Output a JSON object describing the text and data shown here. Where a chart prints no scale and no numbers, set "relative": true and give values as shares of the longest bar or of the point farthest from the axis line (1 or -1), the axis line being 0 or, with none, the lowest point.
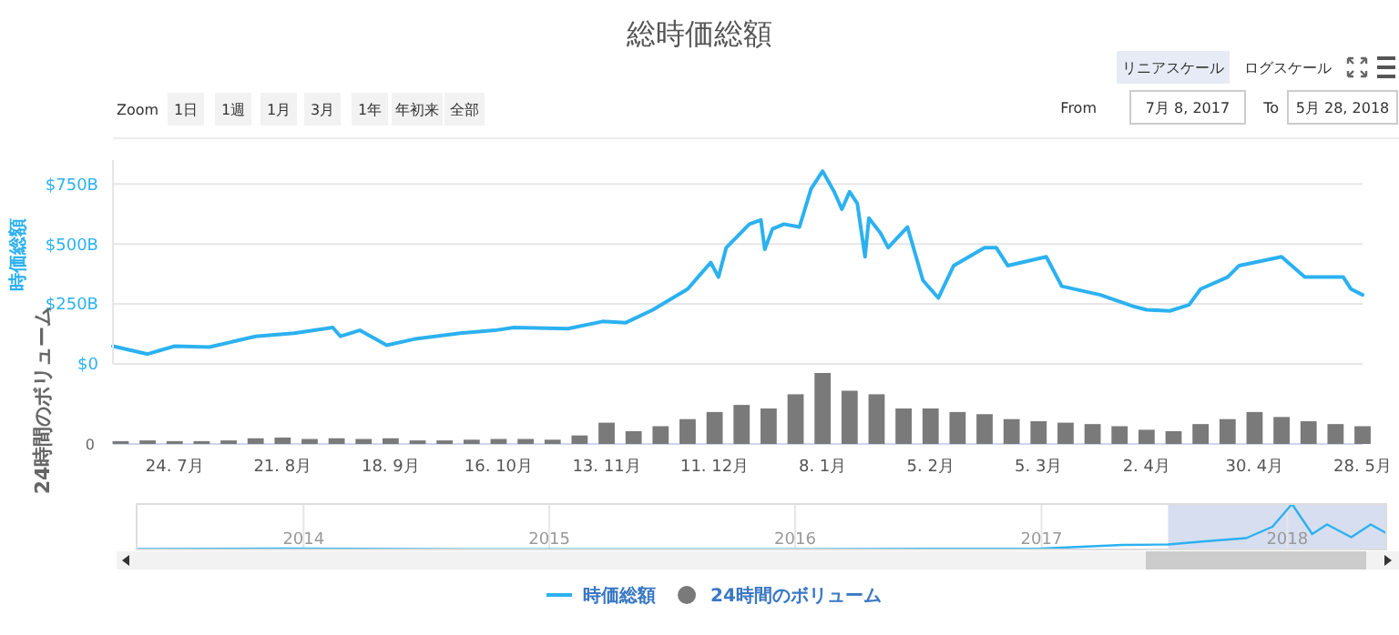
{
  "chart_data": [
    {
      "type": "line",
      "title": "総時価総額",
      "ylabel": "時価総額",
      "xlim": [
        "2017-07-08",
        "2018-05-28"
      ],
      "ylim": [
        0,
        850
      ],
      "yticks": [
        {
          "value": 0,
          "label": "$0"
        },
        {
          "value": 250,
          "label": "$250B"
        },
        {
          "value": 500,
          "label": "$500B"
        },
        {
          "value": 750,
          "label": "$750B"
        }
      ],
      "tick_labels": "y",
      "grid": "y",
      "legend": "bottom",
      "annotations": [
        "Zoom",
        "1日",
        "1週",
        "1月",
        "3月",
        "1年",
        "年初来",
        "全部",
        "From",
        "7月 8, 2017",
        "To",
        "5月 28, 2018",
        "リニアスケール",
        "ログスケール"
      ],
      "x": [
        "2017-07-08",
        "2017-07-17",
        "2017-07-24",
        "2017-08-02",
        "2017-08-14",
        "2017-08-24",
        "2017-09-03",
        "2017-09-05",
        "2017-09-10",
        "2017-09-17",
        "2017-09-24",
        "2017-10-06",
        "2017-10-15",
        "2017-10-20",
        "2017-11-03",
        "2017-11-12",
        "2017-11-18",
        "2017-11-25",
        "2017-12-04",
        "2017-12-10",
        "2017-12-12",
        "2017-12-14",
        "2017-12-20",
        "2017-12-23",
        "2017-12-24",
        "2017-12-26",
        "2017-12-29",
        "2018-01-02",
        "2018-01-05",
        "2018-01-08",
        "2018-01-11",
        "2018-01-13",
        "2018-01-15",
        "2018-01-17",
        "2018-01-19",
        "2018-01-20",
        "2018-01-23",
        "2018-01-25",
        "2018-01-30",
        "2018-02-03",
        "2018-02-07",
        "2018-02-11",
        "2018-02-19",
        "2018-02-22",
        "2018-02-25",
        "2018-03-07",
        "2018-03-11",
        "2018-03-21",
        "2018-03-30",
        "2018-04-02",
        "2018-04-08",
        "2018-04-13",
        "2018-04-16",
        "2018-04-23",
        "2018-04-26",
        "2018-05-07",
        "2018-05-13",
        "2018-05-23",
        "2018-05-25",
        "2018-05-28"
      ],
      "series": [
        {
          "name": "時価総額",
          "color": "#2cb1f0",
          "values": [
            74,
            41,
            74,
            70,
            115,
            128,
            152,
            115,
            140,
            78,
            103,
            128,
            140,
            152,
            147,
            177,
            172,
            226,
            312,
            423,
            362,
            484,
            583,
            600,
            478,
            563,
            583,
            571,
            730,
            804,
            718,
            645,
            718,
            669,
            447,
            608,
            546,
            485,
            571,
            349,
            275,
            410,
            485,
            485,
            410,
            447,
            324,
            288,
            238,
            226,
            221,
            246,
            312,
            362,
            410,
            447,
            362,
            362,
            312,
            288
          ]
        }
      ]
    },
    {
      "type": "bar",
      "relative": true,
      "ylabel": "24時間のボリューム",
      "annotations": [
        "0"
      ],
      "legend": "bottom",
      "xlim": [
        "2017-07-08",
        "2018-05-28"
      ],
      "xticks": [
        {
          "value": "2017-07-24",
          "label": "24. 7月"
        },
        {
          "value": "2017-08-21",
          "label": "21. 8月"
        },
        {
          "value": "2017-09-18",
          "label": "18. 9月"
        },
        {
          "value": "2017-10-16",
          "label": "16. 10月"
        },
        {
          "value": "2017-11-13",
          "label": "13. 11月"
        },
        {
          "value": "2017-12-11",
          "label": "11. 12月"
        },
        {
          "value": "2018-01-08",
          "label": "8. 1月"
        },
        {
          "value": "2018-02-05",
          "label": "5. 2月"
        },
        {
          "value": "2018-03-05",
          "label": "5. 3月"
        },
        {
          "value": "2018-04-02",
          "label": "2. 4月"
        },
        {
          "value": "2018-04-30",
          "label": "30. 4月"
        },
        {
          "value": "2018-05-28",
          "label": "28. 5月"
        }
      ],
      "tick_labels": "x",
      "x": [
        "2017-07-10",
        "2017-07-17",
        "2017-07-24",
        "2017-07-31",
        "2017-08-07",
        "2017-08-14",
        "2017-08-21",
        "2017-08-28",
        "2017-09-04",
        "2017-09-11",
        "2017-09-18",
        "2017-09-25",
        "2017-10-02",
        "2017-10-09",
        "2017-10-16",
        "2017-10-23",
        "2017-10-30",
        "2017-11-06",
        "2017-11-13",
        "2017-11-20",
        "2017-11-27",
        "2017-12-04",
        "2017-12-11",
        "2017-12-18",
        "2017-12-25",
        "2018-01-01",
        "2018-01-08",
        "2018-01-15",
        "2018-01-22",
        "2018-01-29",
        "2018-02-05",
        "2018-02-12",
        "2018-02-19",
        "2018-02-26",
        "2018-03-05",
        "2018-03-12",
        "2018-03-19",
        "2018-03-26",
        "2018-04-02",
        "2018-04-09",
        "2018-04-16",
        "2018-04-23",
        "2018-04-30",
        "2018-05-07",
        "2018-05-14",
        "2018-05-21",
        "2018-05-28"
      ],
      "series": [
        {
          "name": "24時間のボリューム",
          "color": "#7a7a7a",
          "values": [
            0.04,
            0.05,
            0.04,
            0.04,
            0.05,
            0.08,
            0.09,
            0.07,
            0.08,
            0.07,
            0.08,
            0.05,
            0.05,
            0.06,
            0.07,
            0.07,
            0.06,
            0.12,
            0.3,
            0.18,
            0.25,
            0.35,
            0.45,
            0.55,
            0.5,
            0.7,
            1,
            0.75,
            0.7,
            0.5,
            0.5,
            0.45,
            0.42,
            0.35,
            0.32,
            0.3,
            0.28,
            0.25,
            0.2,
            0.18,
            0.28,
            0.35,
            0.45,
            0.38,
            0.32,
            0.28,
            0.25
          ]
        }
      ]
    },
    {
      "type": "line",
      "relative": true,
      "xlim": [
        "2013-04-28",
        "2018-05-28"
      ],
      "xticks": [
        "2014",
        "2015",
        "2016",
        "2017",
        "2018"
      ],
      "tick_labels": "x",
      "grid": "x",
      "bands": [
        {
          "axis": "x",
          "from": "2017-07-08",
          "to": "2018-05-28",
          "color": "#ccd6eb"
        }
      ],
      "x": [
        "2013-04-28",
        "2013-12-01",
        "2014-06-01",
        "2015-01-01",
        "2016-01-01",
        "2017-01-01",
        "2017-05-01",
        "2017-07-08",
        "2017-09-01",
        "2017-11-01",
        "2017-12-10",
        "2018-01-08",
        "2018-02-07",
        "2018-03-01",
        "2018-04-06",
        "2018-05-05",
        "2018-05-28"
      ],
      "series": [
        {
          "color": "#2cb1f0",
          "values": [
            0.01,
            0.02,
            0.01,
            0.005,
            0.008,
            0.02,
            0.1,
            0.11,
            0.18,
            0.25,
            0.5,
            1,
            0.34,
            0.55,
            0.27,
            0.55,
            0.36
          ]
        }
      ]
    }
  ]
}
